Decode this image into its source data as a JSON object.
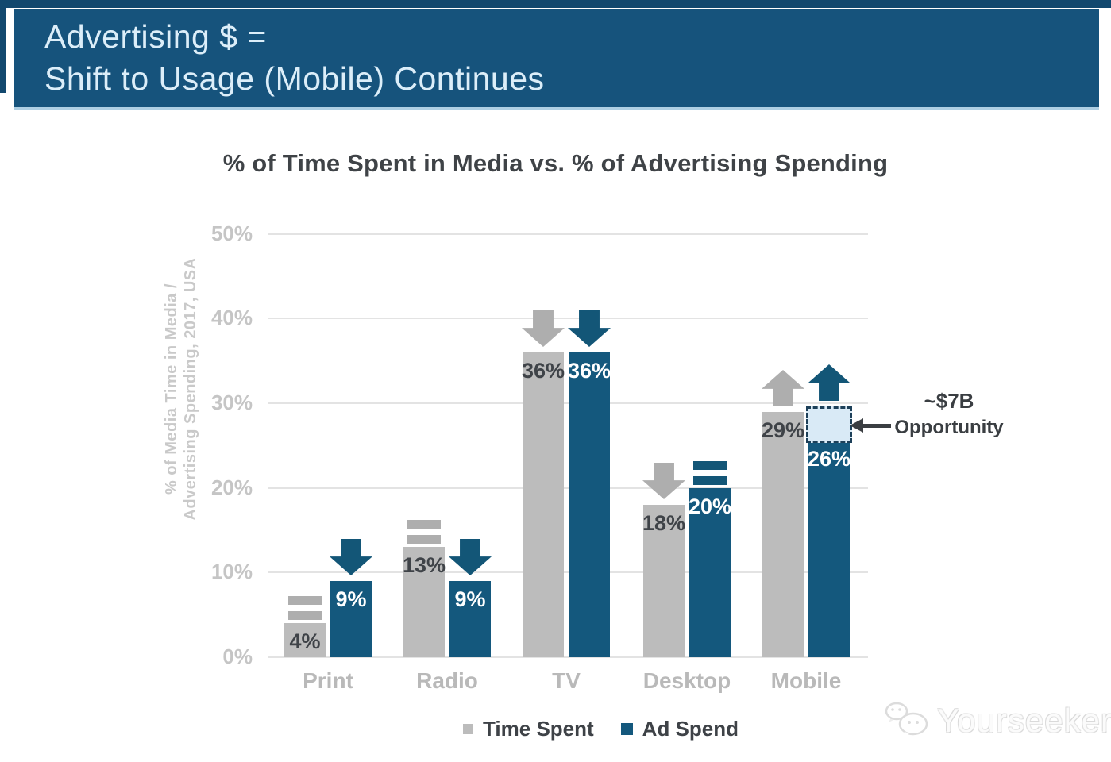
{
  "banner": {
    "line1": "Advertising $ =",
    "line2": "Shift to Usage (Mobile) Continues",
    "bg_color": "#16537c"
  },
  "chart_data": {
    "type": "bar",
    "title": "% of Time Spent in Media vs. % of Advertising Spending",
    "ylabel": [
      "% of Media Time in Media /",
      "Advertising Spending, 2017, USA"
    ],
    "categories": [
      "Print",
      "Radio",
      "TV",
      "Desktop",
      "Mobile"
    ],
    "series": [
      {
        "name": "Time Spent",
        "color": "#bcbcbc",
        "icon_color": "#aeaeae",
        "label_color": "#3f4348",
        "values": [
          4,
          13,
          36,
          18,
          29
        ],
        "labels": [
          "4%",
          "13%",
          "36%",
          "18%",
          "29%"
        ],
        "trends": [
          "equal",
          "equal",
          "down",
          "down",
          "up"
        ]
      },
      {
        "name": "Ad Spend",
        "color": "#14587d",
        "icon_color": "#135677",
        "label_color": "#ffffff",
        "values": [
          9,
          9,
          36,
          20,
          26
        ],
        "labels": [
          "9%",
          "9%",
          "36%",
          "20%",
          "26%"
        ],
        "trends": [
          "down",
          "down",
          "down",
          "equal",
          "up"
        ]
      }
    ],
    "ylim": [
      0,
      50
    ],
    "yticks": [
      {
        "label": "50%",
        "value": 50
      },
      {
        "label": "40%",
        "value": 40
      },
      {
        "label": "30%",
        "value": 30
      },
      {
        "label": "20%",
        "value": 20
      },
      {
        "label": "10%",
        "value": 10
      },
      {
        "label": "0%",
        "value": 0
      }
    ],
    "grid": true,
    "legend_position": "bottom",
    "annotation": {
      "line1": "~$7B",
      "line2": "Opportunity"
    },
    "opportunity_box": {
      "category": "Mobile",
      "series": "Ad Spend",
      "from_pct": 26,
      "to_pct": 29.6,
      "fill": "#d9eaf6",
      "border": "#1d4059"
    }
  },
  "watermark": {
    "text": "Yourseeker"
  }
}
